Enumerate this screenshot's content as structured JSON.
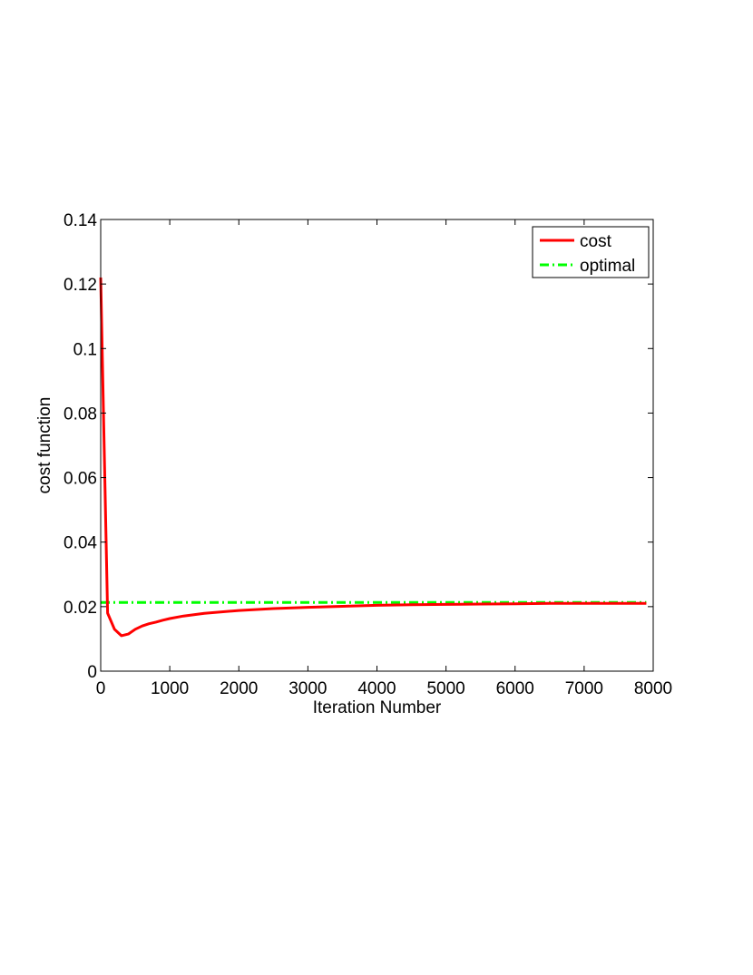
{
  "chart_data": {
    "type": "line",
    "title": "",
    "xlabel": "Iteration Number",
    "ylabel": "cost function",
    "xlim": [
      0,
      8000
    ],
    "ylim": [
      0,
      0.14
    ],
    "xticks": [
      0,
      1000,
      2000,
      3000,
      4000,
      5000,
      6000,
      7000,
      8000
    ],
    "xtick_labels": [
      "0",
      "1000",
      "2000",
      "3000",
      "4000",
      "5000",
      "6000",
      "7000",
      "8000"
    ],
    "yticks": [
      0,
      0.02,
      0.04,
      0.06,
      0.08,
      0.1,
      0.12,
      0.14
    ],
    "ytick_labels": [
      "0",
      "0.02",
      "0.04",
      "0.06",
      "0.08",
      "0.1",
      "0.12",
      "0.14"
    ],
    "grid": false,
    "legend_position": "top-right",
    "series": [
      {
        "name": "cost",
        "color": "#ff0000",
        "style": "solid",
        "x": [
          0,
          100,
          200,
          300,
          400,
          500,
          600,
          700,
          800,
          900,
          1000,
          1200,
          1500,
          2000,
          2500,
          3000,
          3500,
          4000,
          4500,
          5000,
          5500,
          6000,
          6500,
          7000,
          7500,
          7900
        ],
        "y": [
          0.122,
          0.018,
          0.013,
          0.011,
          0.0115,
          0.013,
          0.014,
          0.0147,
          0.0152,
          0.0158,
          0.0163,
          0.0171,
          0.0179,
          0.0188,
          0.0194,
          0.0198,
          0.0201,
          0.0204,
          0.0206,
          0.0207,
          0.0208,
          0.0209,
          0.021,
          0.021,
          0.021,
          0.021
        ]
      },
      {
        "name": "optimal",
        "color": "#00ff00",
        "style": "dashdot",
        "x": [
          0,
          7900
        ],
        "y": [
          0.0213,
          0.0213
        ]
      }
    ]
  }
}
